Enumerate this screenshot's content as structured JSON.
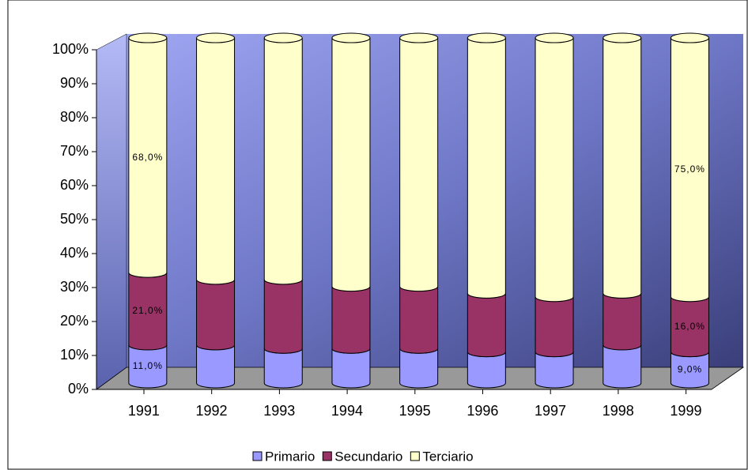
{
  "chart_data": {
    "type": "bar3d-stacked-percent",
    "categories": [
      "1991",
      "1992",
      "1993",
      "1994",
      "1995",
      "1996",
      "1997",
      "1998",
      "1999"
    ],
    "series": [
      {
        "name": "Primario",
        "color": "#9999ff",
        "values": [
          11,
          11,
          10,
          10,
          10,
          9,
          9,
          11,
          9
        ],
        "value_labels": [
          "11,0%",
          null,
          null,
          null,
          null,
          null,
          null,
          null,
          "9,0%"
        ]
      },
      {
        "name": "Secundario",
        "color": "#993366",
        "values": [
          21,
          19,
          20,
          18,
          18,
          17,
          16,
          15,
          16
        ],
        "value_labels": [
          "21,0%",
          null,
          null,
          null,
          null,
          null,
          null,
          null,
          "16,0%"
        ]
      },
      {
        "name": "Terciario",
        "color": "#ffffcc",
        "values": [
          68,
          70,
          70,
          72,
          72,
          74,
          75,
          74,
          75
        ],
        "value_labels": [
          "68,0%",
          null,
          null,
          null,
          null,
          null,
          null,
          null,
          "75,0%"
        ]
      }
    ],
    "ylim": [
      0,
      100
    ],
    "yticks": [
      {
        "value": 0,
        "label": "0%"
      },
      {
        "value": 10,
        "label": "10%"
      },
      {
        "value": 20,
        "label": "20%"
      },
      {
        "value": 30,
        "label": "30%"
      },
      {
        "value": 40,
        "label": "40%"
      },
      {
        "value": 50,
        "label": "50%"
      },
      {
        "value": 60,
        "label": "60%"
      },
      {
        "value": 70,
        "label": "70%"
      },
      {
        "value": 80,
        "label": "80%"
      },
      {
        "value": 90,
        "label": "90%"
      },
      {
        "value": 100,
        "label": "100%"
      }
    ],
    "legend": "bottom"
  }
}
